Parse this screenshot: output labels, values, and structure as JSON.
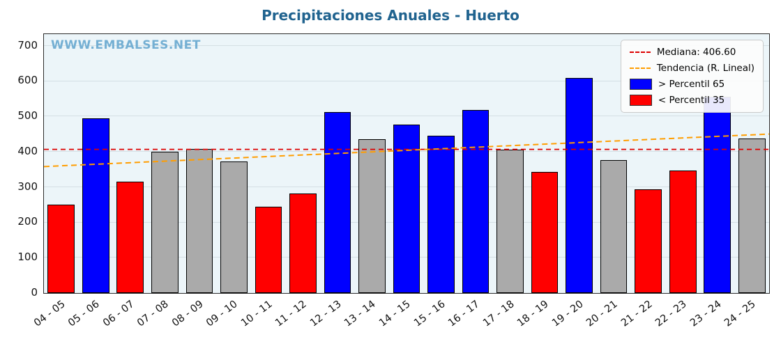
{
  "watermark": "WWW.EMBALSES.NET",
  "watermark_color": "#74afd3",
  "title_color": "#20638f",
  "legend": [
    {
      "label": "Mediana: 406.60",
      "marker": "dashed-line",
      "color": "#dd0000"
    },
    {
      "label": "Tendencia (R. Lineal)",
      "marker": "dashed-line",
      "color": "#ff9d00"
    },
    {
      "label": "> Percentil 65",
      "marker": "patch",
      "color": "#0000ff"
    },
    {
      "label": "< Percentil 35",
      "marker": "patch",
      "color": "#ff0000"
    }
  ],
  "chart_data": {
    "type": "bar",
    "title": "Precipitaciones Anuales - Huerto",
    "xlabel": "",
    "ylabel": "",
    "categories": [
      "04 - 05",
      "05 - 06",
      "06 - 07",
      "07 - 08",
      "08 - 09",
      "09 - 10",
      "10 - 11",
      "11 - 12",
      "12 - 13",
      "13 - 14",
      "14 - 15",
      "15 - 16",
      "16 - 17",
      "17 - 18",
      "18 - 19",
      "19 - 20",
      "20 - 21",
      "21 - 22",
      "22 - 23",
      "23 - 24",
      "24 - 25"
    ],
    "values": [
      250,
      495,
      315,
      400,
      408,
      372,
      245,
      282,
      513,
      435,
      477,
      446,
      518,
      405,
      342,
      608,
      377,
      294,
      346,
      555,
      437
    ],
    "bar_classes": [
      "below",
      "above",
      "below",
      "mid",
      "mid",
      "mid",
      "below",
      "below",
      "above",
      "mid",
      "above",
      "above",
      "above",
      "mid",
      "below",
      "above",
      "mid",
      "below",
      "below",
      "above",
      "mid"
    ],
    "colors": {
      "above": "#0000ff",
      "below": "#ff0000",
      "mid": "#aaaaaa"
    },
    "median": 406.6,
    "trend": {
      "start": 358,
      "end": 450
    },
    "yticks": [
      0,
      100,
      200,
      300,
      400,
      500,
      600,
      700
    ],
    "ylim": [
      0,
      733
    ],
    "grid": true,
    "legend_position": "upper right"
  }
}
